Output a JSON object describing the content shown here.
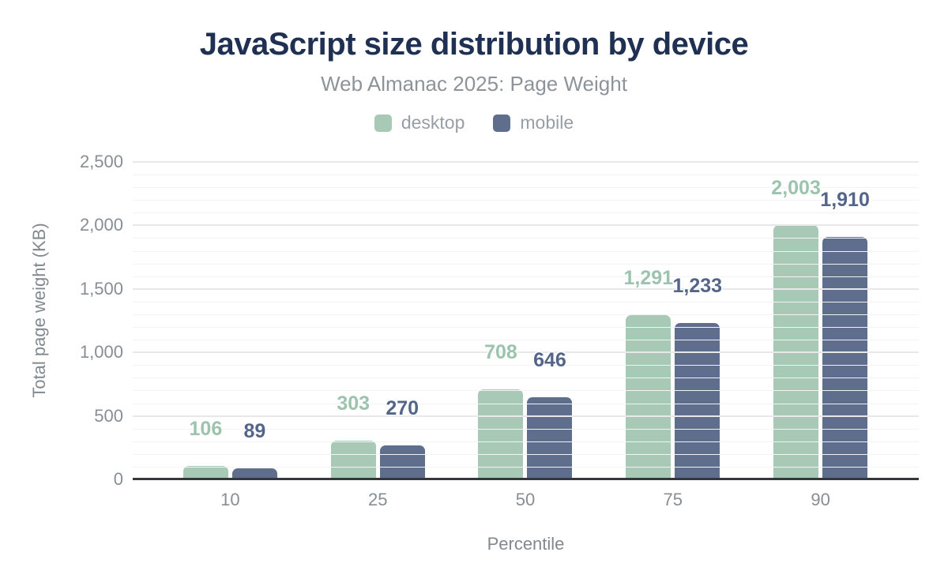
{
  "header": {
    "title": "JavaScript size distribution by device",
    "subtitle": "Web Almanac 2025: Page Weight"
  },
  "legend": {
    "position": "top",
    "items": [
      {
        "label": "desktop",
        "color": "#a7c9b6"
      },
      {
        "label": "mobile",
        "color": "#5f6e8c"
      }
    ]
  },
  "chart_data": {
    "type": "bar",
    "title": "JavaScript size distribution by device",
    "subtitle": "Web Almanac 2025: Page Weight",
    "categories": [
      "10",
      "25",
      "50",
      "75",
      "90"
    ],
    "series": [
      {
        "name": "desktop",
        "color": "#a7c9b6",
        "label_color": "#9cc3ae",
        "values": [
          106,
          303,
          708,
          1291,
          2003
        ],
        "value_labels": [
          "106",
          "303",
          "708",
          "1,291",
          "2,003"
        ]
      },
      {
        "name": "mobile",
        "color": "#5f6e8c",
        "label_color": "#54658a",
        "values": [
          89,
          270,
          646,
          1233,
          1910
        ],
        "value_labels": [
          "89",
          "270",
          "646",
          "1,233",
          "1,910"
        ]
      }
    ],
    "xlabel": "Percentile",
    "ylabel": "Total page weight (KB)",
    "ylim": [
      0,
      2500
    ],
    "yticks": [
      {
        "value": 0,
        "label": "0"
      },
      {
        "value": 500,
        "label": "500"
      },
      {
        "value": 1000,
        "label": "1,000"
      },
      {
        "value": 1500,
        "label": "1,500"
      },
      {
        "value": 2000,
        "label": "2,000"
      },
      {
        "value": 2500,
        "label": "2,500"
      }
    ],
    "grid": {
      "show": true,
      "major_step": 500,
      "minor_step": 100
    },
    "legend_position": "top"
  },
  "colors": {
    "title": "#1f3053",
    "subtitle": "#8d9499",
    "legend_text": "#979ea4",
    "tick_text": "#878e94",
    "axis_title_text": "#81898f",
    "axis_line": "#34383c",
    "grid_major": "#e8e8eb",
    "grid_minor": "#f3f3f5",
    "background": "#ffffff"
  }
}
